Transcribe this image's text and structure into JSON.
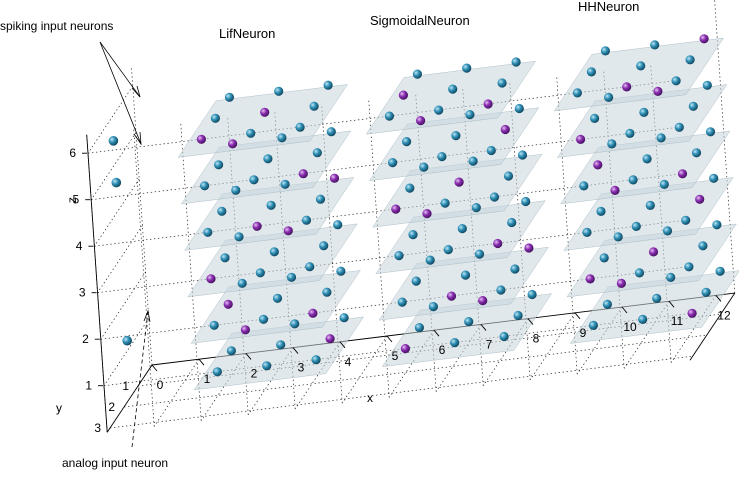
{
  "titles": {
    "lif": "LifNeuron",
    "sigmoidal": "SigmoidalNeuron",
    "hh": "HHNeuron"
  },
  "annotations": {
    "spiking": "spiking input neurons",
    "analog": "analog input neuron"
  },
  "axes": {
    "x_label": "x",
    "y_label": "y",
    "z_label": "z",
    "x_ticks": [
      "0",
      "1",
      "2",
      "3",
      "4",
      "5",
      "6",
      "7",
      "8",
      "9",
      "10",
      "11",
      "12"
    ],
    "y_ticks": [
      "1",
      "2",
      "3"
    ],
    "z_ticks": [
      "1",
      "2",
      "3",
      "4",
      "5",
      "6"
    ]
  },
  "colors": {
    "excitatory": "#2f8fb5",
    "inhibitory": "#8a2db0",
    "plane": "#c7d6dd"
  }
}
